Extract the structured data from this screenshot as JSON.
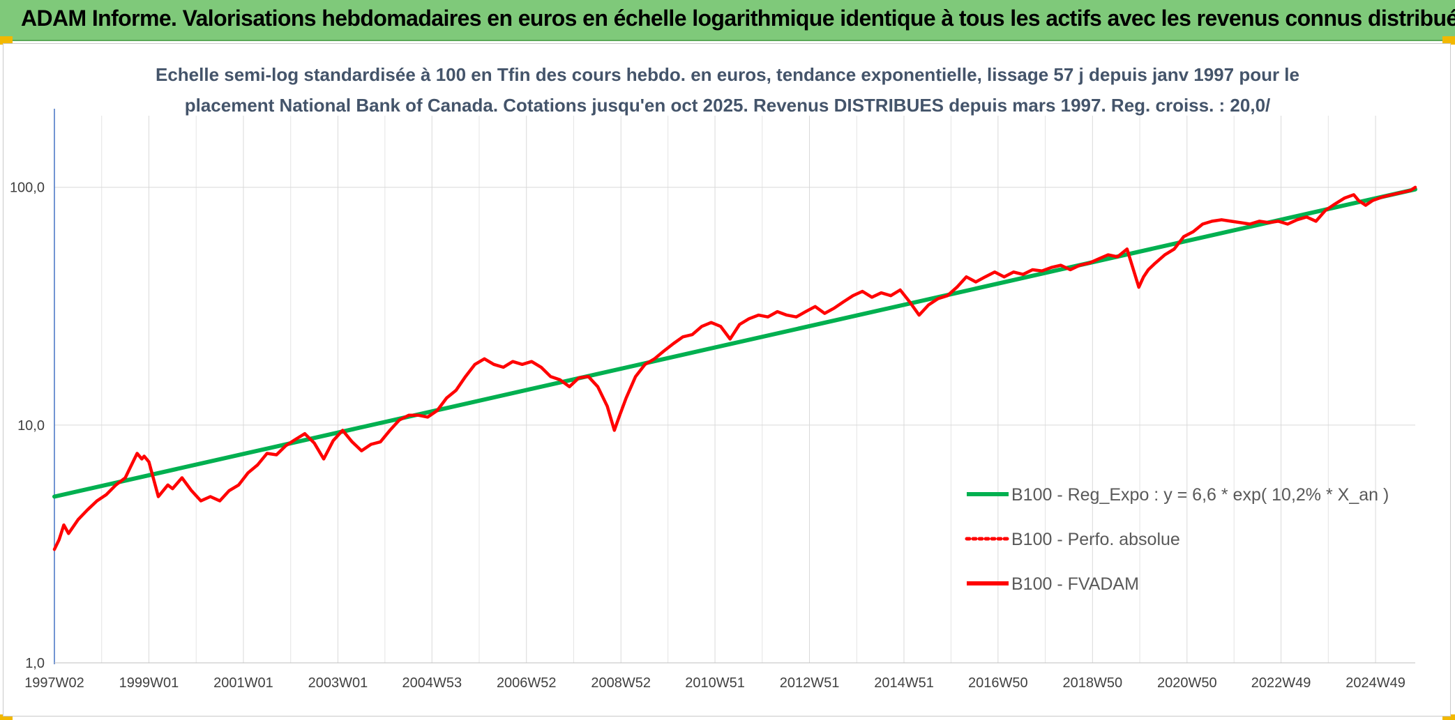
{
  "header": {
    "title": "ADAM Informe. Valorisations hebdomadaires en euros en échelle logarithmique identique à tous les actifs avec les revenus connus distribués",
    "background_color": "#7fc97a",
    "corner_color": "#f2b800"
  },
  "chart_data": {
    "type": "line",
    "title_lines": [
      "Echelle semi-log standardisée à 100 en Tfin des cours hebdo. en euros, tendance exponentielle, lissage 57 j depuis janv 1997 pour le",
      "placement National Bank of Canada. Cotations jusqu'en oct 2025. Revenus DISTRIBUES depuis mars 1997. Reg. croiss. : 20,0/"
    ],
    "xlabel": "",
    "ylabel": "",
    "y_scale": "log",
    "ylim": [
      1,
      200
    ],
    "y_ticks": [
      1,
      10,
      100
    ],
    "y_tick_labels": [
      "1,0",
      "10,0",
      "100,0"
    ],
    "xlim": [
      1997.0,
      2025.8
    ],
    "x_ticks": [
      1997.0,
      1999.0,
      2001.0,
      2003.0,
      2004.99,
      2006.99,
      2008.99,
      2010.98,
      2012.98,
      2014.98,
      2016.97,
      2018.97,
      2020.97,
      2022.96,
      2024.96
    ],
    "x_tick_labels": [
      "1997W02",
      "1999W01",
      "2001W01",
      "2003W01",
      "2004W53",
      "2006W52",
      "2008W52",
      "2010W51",
      "2012W51",
      "2014W51",
      "2016W50",
      "2018W50",
      "2020W50",
      "2022W49",
      "2024W49"
    ],
    "grid": true,
    "legend_position": "lower-right",
    "series": [
      {
        "name": "B100 - Reg_Expo : y = 6,6 * exp( 10,2% *  X_an )",
        "color": "#00b050",
        "style": "solid",
        "x": [
          1997.0,
          2025.8
        ],
        "values": [
          5.0,
          98.0
        ]
      },
      {
        "name": "B100 - Perfo. absolue",
        "color": "#ff0000",
        "style": "dotted",
        "x": [],
        "values": []
      },
      {
        "name": "B100 - FVADAM",
        "color": "#ff0000",
        "style": "solid",
        "x": [
          1997.0,
          1997.1,
          1997.2,
          1997.3,
          1997.5,
          1997.7,
          1997.9,
          1998.1,
          1998.3,
          1998.5,
          1998.6,
          1998.75,
          1998.85,
          1998.9,
          1999.0,
          1999.2,
          1999.4,
          1999.5,
          1999.7,
          1999.9,
          2000.1,
          2000.3,
          2000.5,
          2000.7,
          2000.9,
          2001.1,
          2001.3,
          2001.5,
          2001.7,
          2001.9,
          2002.1,
          2002.3,
          2002.5,
          2002.7,
          2002.9,
          2003.1,
          2003.3,
          2003.5,
          2003.7,
          2003.9,
          2004.1,
          2004.3,
          2004.5,
          2004.7,
          2004.9,
          2005.1,
          2005.3,
          2005.5,
          2005.7,
          2005.9,
          2006.1,
          2006.3,
          2006.5,
          2006.7,
          2006.9,
          2007.1,
          2007.3,
          2007.5,
          2007.7,
          2007.9,
          2008.1,
          2008.3,
          2008.5,
          2008.7,
          2008.85,
          2008.95,
          2009.1,
          2009.3,
          2009.5,
          2009.7,
          2009.9,
          2010.1,
          2010.3,
          2010.5,
          2010.7,
          2010.9,
          2011.1,
          2011.3,
          2011.5,
          2011.7,
          2011.9,
          2012.1,
          2012.3,
          2012.5,
          2012.7,
          2012.9,
          2013.1,
          2013.3,
          2013.5,
          2013.7,
          2013.9,
          2014.1,
          2014.3,
          2014.5,
          2014.7,
          2014.9,
          2015.1,
          2015.3,
          2015.5,
          2015.7,
          2015.9,
          2016.1,
          2016.3,
          2016.5,
          2016.7,
          2016.9,
          2017.1,
          2017.3,
          2017.5,
          2017.7,
          2017.9,
          2018.1,
          2018.3,
          2018.5,
          2018.7,
          2018.9,
          2019.1,
          2019.3,
          2019.5,
          2019.7,
          2019.95,
          2020.05,
          2020.15,
          2020.3,
          2020.5,
          2020.7,
          2020.9,
          2021.1,
          2021.3,
          2021.5,
          2021.7,
          2021.9,
          2022.1,
          2022.3,
          2022.5,
          2022.7,
          2022.9,
          2023.1,
          2023.3,
          2023.5,
          2023.7,
          2023.9,
          2024.1,
          2024.3,
          2024.5,
          2024.6,
          2024.75,
          2024.9,
          2025.1,
          2025.3,
          2025.5,
          2025.7,
          2025.8
        ],
        "values": [
          3.0,
          3.3,
          3.8,
          3.5,
          4.0,
          4.4,
          4.8,
          5.1,
          5.6,
          6.0,
          6.6,
          7.6,
          7.2,
          7.4,
          7.0,
          5.0,
          5.6,
          5.4,
          6.0,
          5.3,
          4.8,
          5.0,
          4.8,
          5.3,
          5.6,
          6.3,
          6.8,
          7.6,
          7.5,
          8.2,
          8.7,
          9.2,
          8.4,
          7.2,
          8.6,
          9.5,
          8.5,
          7.8,
          8.3,
          8.5,
          9.5,
          10.5,
          11.0,
          11.0,
          10.8,
          11.5,
          13.0,
          14.0,
          16.0,
          18.0,
          19.0,
          18.0,
          17.5,
          18.5,
          18.0,
          18.5,
          17.5,
          16.0,
          15.5,
          14.5,
          15.8,
          16.0,
          14.5,
          12.0,
          9.5,
          10.8,
          13.0,
          16.0,
          18.0,
          19.0,
          20.5,
          22.0,
          23.5,
          24.0,
          26.0,
          27.0,
          26.0,
          23.0,
          26.5,
          28.0,
          29.0,
          28.5,
          30.0,
          29.0,
          28.5,
          30.0,
          31.5,
          29.5,
          31.0,
          33.0,
          35.0,
          36.5,
          34.5,
          36.0,
          35.0,
          37.0,
          33.0,
          29.0,
          32.0,
          34.0,
          35.0,
          38.0,
          42.0,
          40.0,
          42.0,
          44.0,
          42.0,
          44.0,
          43.0,
          45.0,
          44.5,
          46.0,
          47.0,
          45.0,
          47.0,
          48.0,
          50.0,
          52.0,
          51.0,
          55.0,
          38.0,
          42.0,
          45.0,
          48.0,
          52.0,
          55.0,
          62.0,
          65.0,
          70.0,
          72.0,
          73.0,
          72.0,
          71.0,
          70.0,
          72.0,
          71.0,
          72.0,
          70.0,
          73.0,
          75.0,
          72.0,
          80.0,
          85.0,
          90.0,
          93.0,
          88.0,
          84.0,
          88.0,
          91.0,
          93.0,
          95.0,
          97.0,
          100.0
        ]
      }
    ]
  }
}
